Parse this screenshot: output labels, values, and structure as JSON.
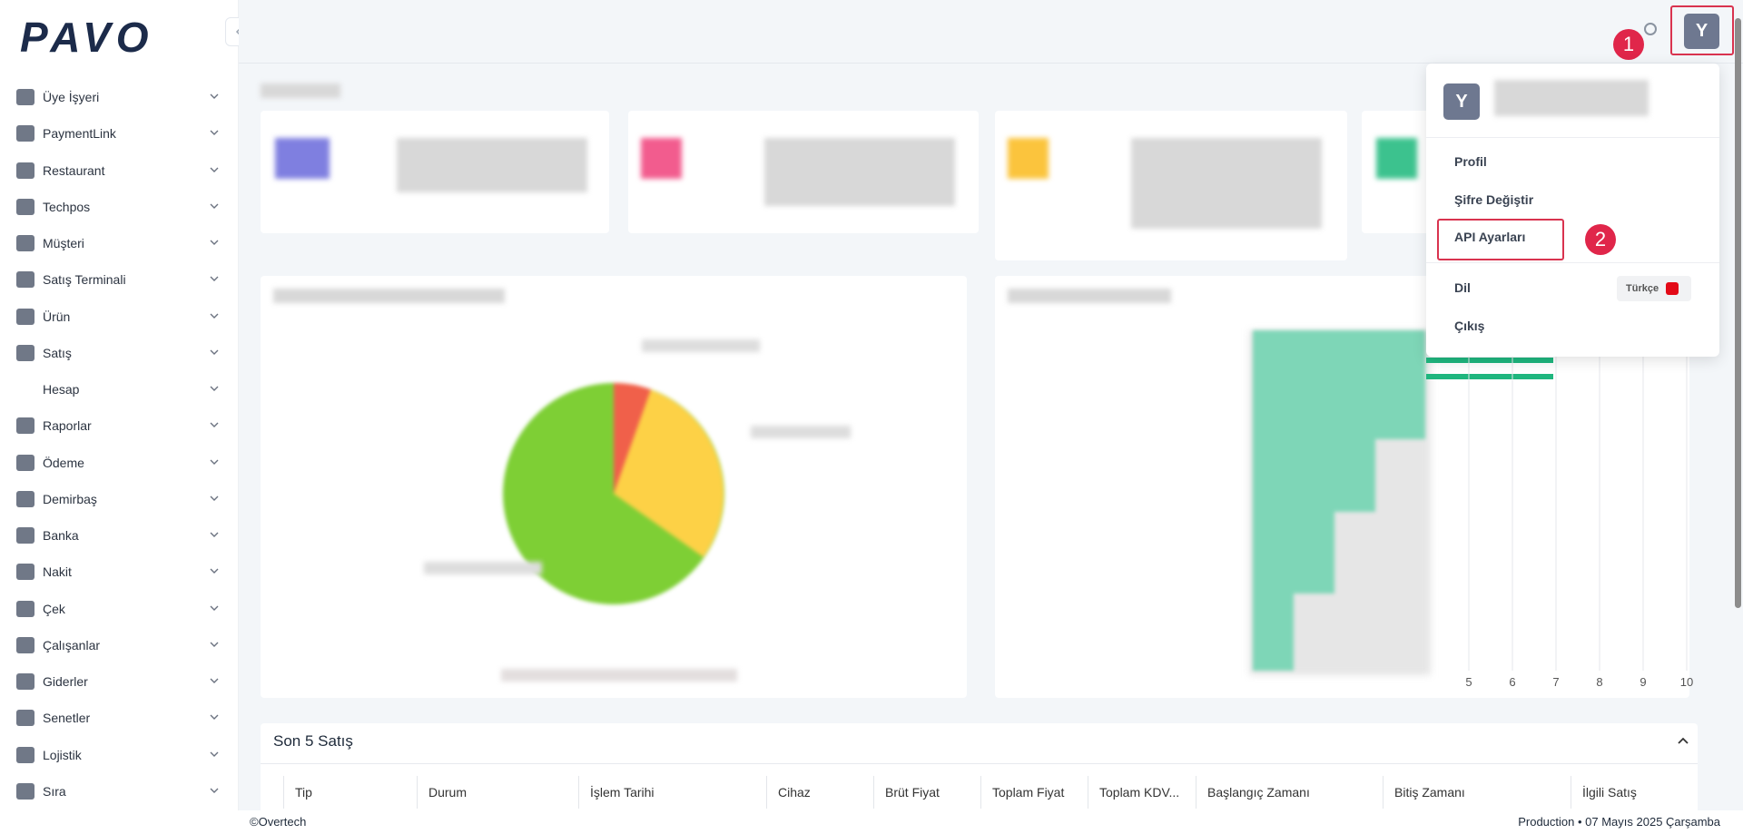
{
  "sidebar": {
    "logo": "PAVO",
    "items": [
      "Üye İşyeri",
      "PaymentLink",
      "Restaurant",
      "Techpos",
      "Müşteri",
      "Satış Terminali",
      "Ürün",
      "Satış",
      "Hesap",
      "Raporlar",
      "Ödeme",
      "Demirbaş",
      "Banka",
      "Nakit",
      "Çek",
      "Çalışanlar",
      "Giderler",
      "Senetler",
      "Lojistik",
      "Sıra"
    ]
  },
  "header": {
    "avatar": "Y"
  },
  "user_menu": {
    "avatar": "Y",
    "items": [
      "Profil",
      "Şifre Değiştir",
      "API Ayarları",
      "Dil",
      "Çıkış"
    ],
    "language": "Türkçe"
  },
  "annotations": [
    "1",
    "2"
  ],
  "chart_axis": {
    "xticks": [
      5,
      6,
      7,
      8,
      9,
      10
    ]
  },
  "sales_table": {
    "title": "Son 5 Satış",
    "columns": [
      "Tip",
      "Durum",
      "İşlem Tarihi",
      "Cihaz",
      "Brüt Fiyat",
      "Toplam Fiyat",
      "Toplam KDV...",
      "Başlangıç Zamanı",
      "Bitiş Zamanı",
      "İlgili Satış"
    ]
  },
  "footer": {
    "left": "©Overtech",
    "right": "Production • 07 Mayıs 2025 Çarşamba"
  }
}
